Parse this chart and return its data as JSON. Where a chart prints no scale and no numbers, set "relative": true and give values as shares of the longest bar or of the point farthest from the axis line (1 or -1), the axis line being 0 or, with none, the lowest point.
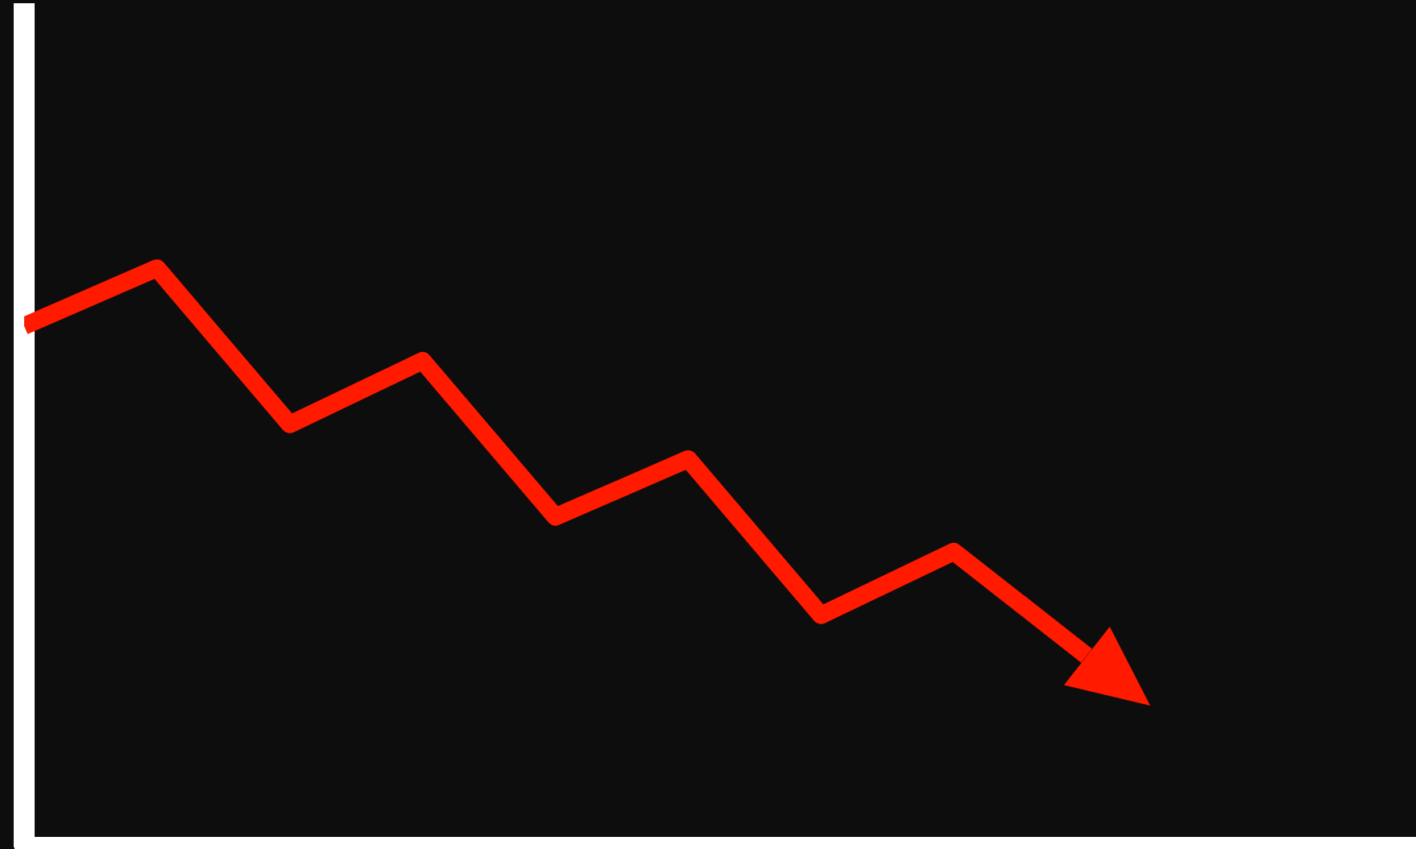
{
  "chart_data": {
    "type": "line",
    "relative": true,
    "categories": [
      null,
      null,
      null,
      null,
      null,
      null,
      null,
      null,
      null
    ],
    "series": [
      {
        "color": "#ff1a00",
        "values": [
          0.9,
          1,
          0.73,
          0.84,
          0.57,
          0.67,
          0.4,
          0.51,
          0.33
        ]
      }
    ],
    "tick_labels": false,
    "grid": false,
    "legend": false,
    "marker": "none",
    "line_style": "solid"
  }
}
